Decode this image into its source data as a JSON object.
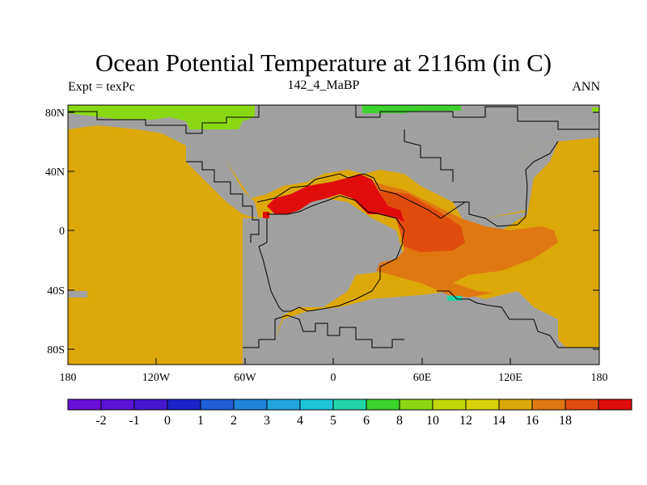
{
  "title": "Ocean Potential Temperature at 2116m (in C)",
  "subtitle_left": "Expt = texPc",
  "subtitle_center": "142_4_MaBP",
  "subtitle_right": "ANN",
  "lat_labels": [
    "80N",
    "40N",
    "0",
    "40S",
    "80S"
  ],
  "lon_labels": [
    "180",
    "120W",
    "60W",
    "0",
    "60E",
    "120E",
    "180"
  ],
  "colorbar": {
    "colors": [
      "#6a0fd8",
      "#5a12d8",
      "#4317d0",
      "#1a22c8",
      "#1e5fd8",
      "#1f85dc",
      "#1fa6dc",
      "#1dc4dc",
      "#20d6a8",
      "#3cd22c",
      "#8ad814",
      "#c2d80a",
      "#d8d20a",
      "#dca808",
      "#e07812",
      "#e04c0c",
      "#e00c0c"
    ],
    "labels": [
      "-2",
      "-1",
      "0",
      "1",
      "2",
      "3",
      "4",
      "5",
      "6",
      "8",
      "10",
      "12",
      "14",
      "16",
      "18"
    ]
  },
  "colors": {
    "land": "#a0a0a0",
    "ocean_warm": "#dca808",
    "ocean_hot": "#e07812",
    "ocean_red": "#e00c0c",
    "ocean_green": "#8ad814",
    "ocean_bright_green": "#3cd22c",
    "coast": "#000000"
  }
}
